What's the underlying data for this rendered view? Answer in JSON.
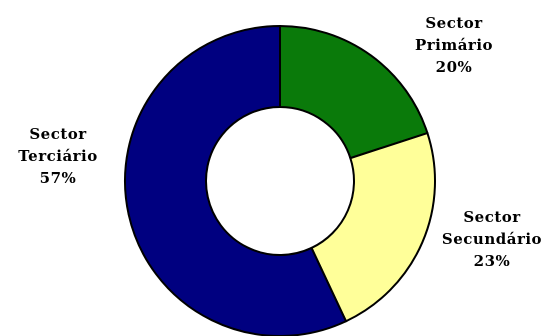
{
  "chart_data": {
    "type": "pie",
    "style": "donut",
    "legend": "none",
    "slices": [
      {
        "name": "Sector Primário",
        "line1": "Sector",
        "line2": "Primário",
        "value": 20,
        "value_label": "20%",
        "color": "#0a7a0a"
      },
      {
        "name": "Sector Secundário",
        "line1": "Sector",
        "line2": "Secundário",
        "value": 23,
        "value_label": "23%",
        "color": "#ffff99"
      },
      {
        "name": "Sector Terciário",
        "line1": "Sector",
        "line2": "Terciário",
        "value": 57,
        "value_label": "57%",
        "color": "#000080"
      }
    ]
  }
}
